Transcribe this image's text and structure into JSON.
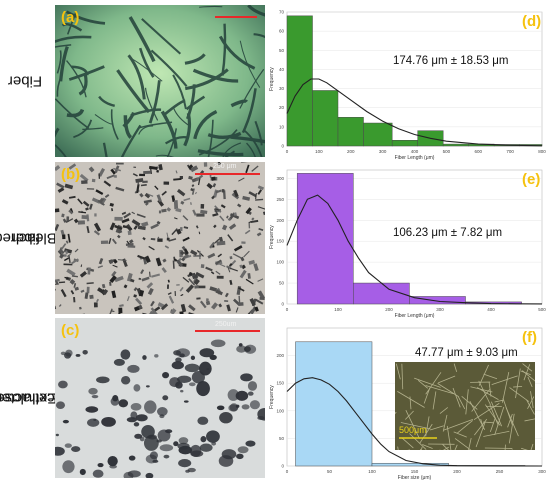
{
  "row_labels": [
    {
      "line1": "Fiber",
      "line2": ""
    },
    {
      "line1": "Bleached",
      "line2": "fiber"
    },
    {
      "line1": "Extracted",
      "line2": "cellulose"
    }
  ],
  "photos": [
    {
      "tag": "(a)",
      "scale_label": ""
    },
    {
      "tag": "(b)",
      "scale_label": "250 μm"
    },
    {
      "tag": "(c)",
      "scale_label": "250um"
    }
  ],
  "inset_scale_label": "500μm",
  "colors": {
    "tag": "#f5c20f",
    "series_d": "#3a9a2e",
    "series_e": "#a65ee6",
    "series_f": "#a9d8f5",
    "fit_line": "#222222",
    "scale_bar_red": "#e8282a",
    "scale_bar_yellow": "#e8d21a"
  },
  "chart_data": [
    {
      "type": "bar",
      "tag": "(d)",
      "annotation": "174.76 μm ± 18.53 μm",
      "xlabel": "Fiber Length (μm)",
      "ylabel": "Frequency",
      "xlim": [
        0,
        800
      ],
      "ylim": [
        0,
        70
      ],
      "xticks": [
        0,
        100,
        200,
        300,
        400,
        500,
        600,
        700,
        800
      ],
      "yticks": [
        0,
        10,
        20,
        30,
        40,
        50,
        60,
        70
      ],
      "bins": [
        {
          "x0": 0,
          "x1": 80,
          "value": 68
        },
        {
          "x0": 80,
          "x1": 160,
          "value": 29
        },
        {
          "x0": 160,
          "x1": 240,
          "value": 15
        },
        {
          "x0": 240,
          "x1": 330,
          "value": 12
        },
        {
          "x0": 330,
          "x1": 410,
          "value": 3
        },
        {
          "x0": 410,
          "x1": 490,
          "value": 8
        },
        {
          "x0": 490,
          "x1": 570,
          "value": 1
        },
        {
          "x0": 570,
          "x1": 650,
          "value": 1
        },
        {
          "x0": 650,
          "x1": 730,
          "value": 0.8
        },
        {
          "x0": 730,
          "x1": 800,
          "value": 0.8
        }
      ],
      "fit": {
        "x": [
          0,
          25,
          50,
          75,
          100,
          125,
          150,
          200,
          250,
          300,
          350,
          400,
          450,
          500,
          600,
          700,
          800
        ],
        "y": [
          17,
          26,
          32,
          35,
          35,
          33,
          30,
          24,
          18,
          13,
          9,
          6,
          4,
          2.5,
          1,
          0.4,
          0.1
        ]
      }
    },
    {
      "type": "bar",
      "tag": "(e)",
      "annotation": "106.23 μm ± 7.82 μm",
      "xlabel": "Fiber Length (μm)",
      "ylabel": "Frequency",
      "xlim": [
        0,
        500
      ],
      "ylim": [
        0,
        320
      ],
      "xticks": [
        0,
        100,
        200,
        300,
        400,
        500
      ],
      "yticks": [
        0,
        50,
        100,
        150,
        200,
        250,
        300
      ],
      "bins": [
        {
          "x0": 20,
          "x1": 130,
          "value": 312
        },
        {
          "x0": 130,
          "x1": 240,
          "value": 50
        },
        {
          "x0": 240,
          "x1": 350,
          "value": 18
        },
        {
          "x0": 350,
          "x1": 460,
          "value": 5
        }
      ],
      "fit": {
        "x": [
          0,
          20,
          40,
          60,
          80,
          100,
          120,
          140,
          160,
          200,
          250,
          300,
          350,
          400,
          450,
          500
        ],
        "y": [
          140,
          200,
          250,
          260,
          240,
          200,
          150,
          110,
          75,
          35,
          15,
          6,
          3,
          1,
          0.5,
          0.2
        ]
      }
    },
    {
      "type": "bar",
      "tag": "(f)",
      "annotation": "47.77 μm ± 9.03 μm",
      "xlabel": "Fiber size (μm)",
      "ylabel": "Frequency",
      "xlim": [
        0,
        300
      ],
      "ylim": [
        0,
        250
      ],
      "xticks": [
        0,
        50,
        100,
        150,
        200,
        250,
        300
      ],
      "yticks": [
        0,
        50,
        100,
        150,
        200
      ],
      "bins": [
        {
          "x0": 10,
          "x1": 100,
          "value": 225
        },
        {
          "x0": 100,
          "x1": 190,
          "value": 5
        },
        {
          "x0": 190,
          "x1": 280,
          "value": 1
        }
      ],
      "fit": {
        "x": [
          0,
          10,
          20,
          30,
          40,
          50,
          60,
          70,
          80,
          90,
          100,
          110,
          120,
          140,
          160,
          180,
          200,
          250,
          300
        ],
        "y": [
          135,
          150,
          158,
          160,
          156,
          148,
          135,
          118,
          98,
          78,
          58,
          40,
          26,
          10,
          4,
          1.5,
          0.5,
          0.1,
          0
        ]
      }
    }
  ]
}
